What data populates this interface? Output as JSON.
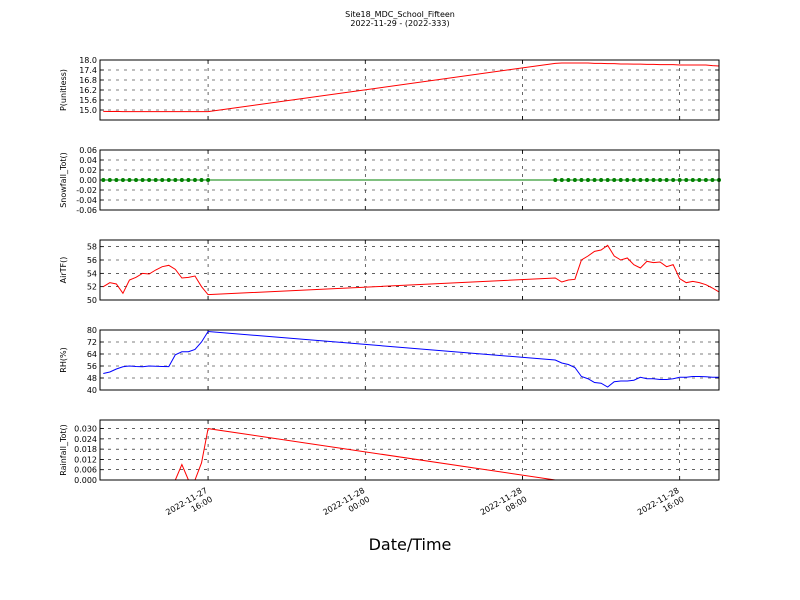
{
  "title": "Site18_MDC_School_Fifteen",
  "subtitle": "2022-11-29 - (2022-333)",
  "xlabel": "Date/Time",
  "chart_data": [
    {
      "type": "line",
      "ylabel": "P(unitless)",
      "color": "#ff0000",
      "grid": true,
      "xlim": [
        "2022-11-27 10:30",
        "2022-11-28 18:00"
      ],
      "xticks": [
        "2022-11-27 16:00",
        "2022-11-28 00:00",
        "2022-11-28 08:00",
        "2022-11-28 16:00"
      ],
      "ylim": [
        14.4,
        18.0
      ],
      "yticks": [
        {
          "value": 15.0,
          "label": "15.0"
        },
        15.6,
        16.2,
        16.8,
        17.4,
        {
          "value": 18.0,
          "label": "18.0"
        }
      ],
      "x": [
        "2022-11-27 10:40",
        "2022-11-27 11:00",
        "2022-11-27 11:20",
        "2022-11-27 11:40",
        "2022-11-27 12:00",
        "2022-11-27 12:20",
        "2022-11-27 12:40",
        "2022-11-27 13:00",
        "2022-11-27 13:20",
        "2022-11-27 13:40",
        "2022-11-27 14:00",
        "2022-11-27 14:20",
        "2022-11-27 14:40",
        "2022-11-27 15:00",
        "2022-11-27 15:20",
        "2022-11-27 15:40",
        "2022-11-27 16:00",
        "2022-11-28 09:40",
        "2022-11-28 10:00",
        "2022-11-28 10:20",
        "2022-11-28 10:40",
        "2022-11-28 11:00",
        "2022-11-28 11:20",
        "2022-11-28 11:40",
        "2022-11-28 12:00",
        "2022-11-28 12:20",
        "2022-11-28 12:40",
        "2022-11-28 13:00",
        "2022-11-28 13:20",
        "2022-11-28 13:40",
        "2022-11-28 14:00",
        "2022-11-28 14:20",
        "2022-11-28 14:40",
        "2022-11-28 15:00",
        "2022-11-28 15:20",
        "2022-11-28 15:40",
        "2022-11-28 16:00",
        "2022-11-28 16:20",
        "2022-11-28 16:40",
        "2022-11-28 17:00",
        "2022-11-28 17:20",
        "2022-11-28 17:40",
        "2022-11-28 18:00"
      ],
      "values": [
        14.92,
        14.91,
        14.92,
        14.9,
        14.9,
        14.9,
        14.9,
        14.9,
        14.9,
        14.9,
        14.9,
        14.9,
        14.9,
        14.9,
        14.9,
        14.9,
        14.9,
        17.8,
        17.82,
        17.82,
        17.82,
        17.82,
        17.82,
        17.8,
        17.8,
        17.78,
        17.78,
        17.76,
        17.76,
        17.75,
        17.75,
        17.74,
        17.74,
        17.72,
        17.72,
        17.72,
        17.7,
        17.7,
        17.7,
        17.7,
        17.7,
        17.66,
        17.64
      ]
    },
    {
      "type": "line",
      "ylabel": "Snowfall_Tot()",
      "color": "#008000",
      "marker": "o",
      "grid": true,
      "xlim": [
        "2022-11-27 10:30",
        "2022-11-28 18:00"
      ],
      "xticks": [
        "2022-11-27 16:00",
        "2022-11-28 00:00",
        "2022-11-28 08:00",
        "2022-11-28 16:00"
      ],
      "ylim": [
        -0.06,
        0.06
      ],
      "yticks": [
        -0.06,
        -0.04,
        -0.02,
        {
          "value": 0,
          "label": "0.00"
        },
        0.02,
        0.04,
        0.06
      ],
      "x": [
        "2022-11-27 10:40",
        "2022-11-27 11:00",
        "2022-11-27 11:20",
        "2022-11-27 11:40",
        "2022-11-27 12:00",
        "2022-11-27 12:20",
        "2022-11-27 12:40",
        "2022-11-27 13:00",
        "2022-11-27 13:20",
        "2022-11-27 13:40",
        "2022-11-27 14:00",
        "2022-11-27 14:20",
        "2022-11-27 14:40",
        "2022-11-27 15:00",
        "2022-11-27 15:20",
        "2022-11-27 15:40",
        "2022-11-27 16:00",
        "2022-11-28 09:40",
        "2022-11-28 10:00",
        "2022-11-28 10:20",
        "2022-11-28 10:40",
        "2022-11-28 11:00",
        "2022-11-28 11:20",
        "2022-11-28 11:40",
        "2022-11-28 12:00",
        "2022-11-28 12:20",
        "2022-11-28 12:40",
        "2022-11-28 13:00",
        "2022-11-28 13:20",
        "2022-11-28 13:40",
        "2022-11-28 14:00",
        "2022-11-28 14:20",
        "2022-11-28 14:40",
        "2022-11-28 15:00",
        "2022-11-28 15:20",
        "2022-11-28 15:40",
        "2022-11-28 16:00",
        "2022-11-28 16:20",
        "2022-11-28 16:40",
        "2022-11-28 17:00",
        "2022-11-28 17:20",
        "2022-11-28 17:40",
        "2022-11-28 18:00"
      ],
      "values": [
        0,
        0,
        0,
        0,
        0,
        0,
        0,
        0,
        0,
        0,
        0,
        0,
        0,
        0,
        0,
        0,
        0,
        0,
        0,
        0,
        0,
        0,
        0,
        0,
        0,
        0,
        0,
        0,
        0,
        0,
        0,
        0,
        0,
        0,
        0,
        0,
        0,
        0,
        0,
        0,
        0,
        0,
        0
      ]
    },
    {
      "type": "line",
      "ylabel": "AirTF()",
      "color": "#ff0000",
      "grid": true,
      "xlim": [
        "2022-11-27 10:30",
        "2022-11-28 18:00"
      ],
      "xticks": [
        "2022-11-27 16:00",
        "2022-11-28 00:00",
        "2022-11-28 08:00",
        "2022-11-28 16:00"
      ],
      "ylim": [
        50,
        59
      ],
      "yticks": [
        50,
        52,
        54,
        56,
        58
      ],
      "x": [
        "2022-11-27 10:40",
        "2022-11-27 11:00",
        "2022-11-27 11:20",
        "2022-11-27 11:40",
        "2022-11-27 12:00",
        "2022-11-27 12:20",
        "2022-11-27 12:40",
        "2022-11-27 13:00",
        "2022-11-27 13:20",
        "2022-11-27 13:40",
        "2022-11-27 14:00",
        "2022-11-27 14:20",
        "2022-11-27 14:40",
        "2022-11-27 15:00",
        "2022-11-27 15:20",
        "2022-11-27 15:40",
        "2022-11-27 16:00",
        "2022-11-28 09:40",
        "2022-11-28 10:00",
        "2022-11-28 10:20",
        "2022-11-28 10:40",
        "2022-11-28 11:00",
        "2022-11-28 11:20",
        "2022-11-28 11:40",
        "2022-11-28 12:00",
        "2022-11-28 12:20",
        "2022-11-28 12:40",
        "2022-11-28 13:00",
        "2022-11-28 13:20",
        "2022-11-28 13:40",
        "2022-11-28 14:00",
        "2022-11-28 14:20",
        "2022-11-28 14:40",
        "2022-11-28 15:00",
        "2022-11-28 15:20",
        "2022-11-28 15:40",
        "2022-11-28 16:00",
        "2022-11-28 16:20",
        "2022-11-28 16:40",
        "2022-11-28 17:00",
        "2022-11-28 17:20",
        "2022-11-28 17:40",
        "2022-11-28 18:00"
      ],
      "values": [
        52.0,
        52.6,
        52.4,
        51.0,
        53.0,
        53.4,
        54.0,
        53.9,
        54.5,
        55.0,
        55.2,
        54.6,
        53.3,
        53.4,
        53.6,
        52.0,
        50.8,
        53.3,
        52.7,
        53.0,
        53.1,
        56.0,
        56.6,
        57.3,
        57.5,
        58.2,
        56.6,
        56.0,
        56.3,
        55.3,
        54.8,
        55.8,
        55.6,
        55.7,
        55.0,
        55.3,
        53.2,
        52.6,
        52.8,
        52.6,
        52.3,
        51.8,
        51.2
      ]
    },
    {
      "type": "line",
      "ylabel": "RH(%)",
      "color": "#0000ff",
      "grid": true,
      "xlim": [
        "2022-11-27 10:30",
        "2022-11-28 18:00"
      ],
      "xticks": [
        "2022-11-27 16:00",
        "2022-11-28 00:00",
        "2022-11-28 08:00",
        "2022-11-28 16:00"
      ],
      "ylim": [
        40,
        80
      ],
      "yticks": [
        40,
        48,
        56,
        64,
        72,
        80
      ],
      "x": [
        "2022-11-27 10:40",
        "2022-11-27 11:00",
        "2022-11-27 11:20",
        "2022-11-27 11:40",
        "2022-11-27 12:00",
        "2022-11-27 12:20",
        "2022-11-27 12:40",
        "2022-11-27 13:00",
        "2022-11-27 13:20",
        "2022-11-27 13:40",
        "2022-11-27 14:00",
        "2022-11-27 14:20",
        "2022-11-27 14:40",
        "2022-11-27 15:00",
        "2022-11-27 15:20",
        "2022-11-27 15:40",
        "2022-11-27 16:00",
        "2022-11-28 09:40",
        "2022-11-28 10:00",
        "2022-11-28 10:20",
        "2022-11-28 10:40",
        "2022-11-28 11:00",
        "2022-11-28 11:20",
        "2022-11-28 11:40",
        "2022-11-28 12:00",
        "2022-11-28 12:20",
        "2022-11-28 12:40",
        "2022-11-28 13:00",
        "2022-11-28 13:20",
        "2022-11-28 13:40",
        "2022-11-28 14:00",
        "2022-11-28 14:20",
        "2022-11-28 14:40",
        "2022-11-28 15:00",
        "2022-11-28 15:20",
        "2022-11-28 15:40",
        "2022-11-28 16:00",
        "2022-11-28 16:20",
        "2022-11-28 16:40",
        "2022-11-28 17:00",
        "2022-11-28 17:20",
        "2022-11-28 17:40",
        "2022-11-28 18:00"
      ],
      "values": [
        51,
        52,
        54,
        55.5,
        56,
        55.7,
        55.5,
        56,
        55.8,
        55.7,
        55.6,
        63.5,
        65.5,
        65.5,
        67,
        72,
        79,
        60,
        58,
        57,
        55,
        49,
        47.5,
        45,
        44.5,
        42,
        45.5,
        46,
        46,
        46.5,
        48.5,
        47.5,
        47.5,
        47,
        47,
        47.5,
        48.5,
        48.5,
        49,
        49,
        48.8,
        48.5,
        48.5
      ]
    },
    {
      "type": "line",
      "ylabel": "Rainfall_Tot()",
      "color": "#ff0000",
      "grid": true,
      "xlim": [
        "2022-11-27 10:30",
        "2022-11-28 18:00"
      ],
      "xticks": [
        "2022-11-27 16:00",
        "2022-11-28 00:00",
        "2022-11-28 08:00",
        "2022-11-28 16:00"
      ],
      "ylim": [
        0,
        0.035
      ],
      "yticks": [
        {
          "value": 0,
          "label": "0.000"
        },
        0.006,
        0.012,
        0.018,
        0.024,
        {
          "value": 0.03,
          "label": "0.030"
        }
      ],
      "x": [
        "2022-11-27 10:40",
        "2022-11-27 11:00",
        "2022-11-27 11:20",
        "2022-11-27 11:40",
        "2022-11-27 12:00",
        "2022-11-27 12:20",
        "2022-11-27 12:40",
        "2022-11-27 13:00",
        "2022-11-27 13:20",
        "2022-11-27 13:40",
        "2022-11-27 14:00",
        "2022-11-27 14:20",
        "2022-11-27 14:40",
        "2022-11-27 15:00",
        "2022-11-27 15:20",
        "2022-11-27 15:40",
        "2022-11-27 16:00",
        "2022-11-28 09:40",
        "2022-11-28 10:00",
        "2022-11-28 10:20",
        "2022-11-28 10:40",
        "2022-11-28 11:00",
        "2022-11-28 11:20",
        "2022-11-28 11:40",
        "2022-11-28 12:00",
        "2022-11-28 12:20",
        "2022-11-28 12:40",
        "2022-11-28 13:00",
        "2022-11-28 13:20",
        "2022-11-28 13:40",
        "2022-11-28 14:00",
        "2022-11-28 14:20",
        "2022-11-28 14:40",
        "2022-11-28 15:00",
        "2022-11-28 15:20",
        "2022-11-28 15:40",
        "2022-11-28 16:00",
        "2022-11-28 16:20",
        "2022-11-28 16:40",
        "2022-11-28 17:00",
        "2022-11-28 17:20",
        "2022-11-28 17:40",
        "2022-11-28 18:00"
      ],
      "values": [
        0,
        0,
        0,
        0,
        0,
        0,
        0,
        0,
        0,
        0,
        0,
        0,
        0.009,
        0,
        0,
        0.01,
        0.03,
        0,
        0,
        0,
        0,
        0,
        0,
        0,
        0,
        0,
        0,
        0,
        0,
        0,
        0,
        0,
        0,
        0,
        0,
        0,
        0,
        0,
        0,
        0,
        0,
        0,
        0
      ]
    }
  ]
}
